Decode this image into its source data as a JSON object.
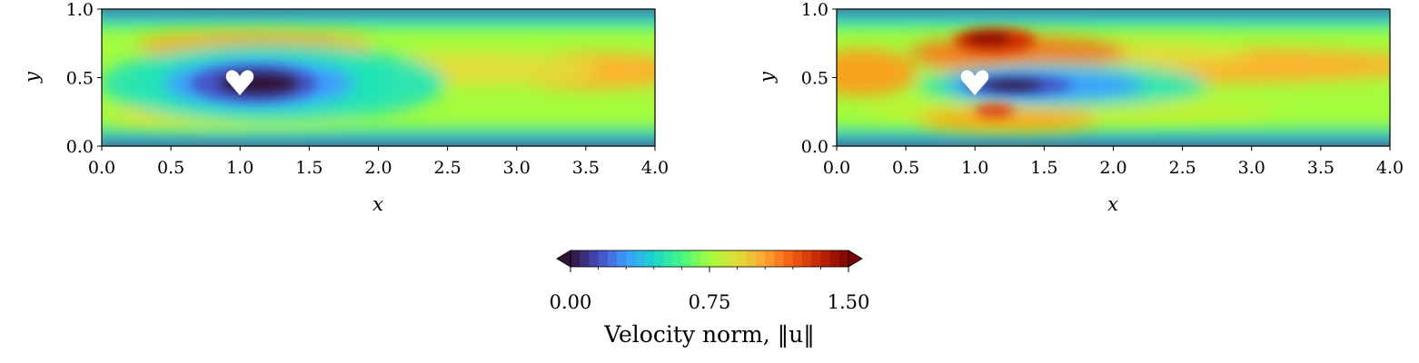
{
  "chart_data": [
    {
      "type": "heatmap",
      "title": "",
      "xlabel": "x",
      "ylabel": "y",
      "xlim": [
        0.0,
        4.0
      ],
      "ylim": [
        0.0,
        1.0
      ],
      "xticks": [
        "0.0",
        "0.5",
        "1.0",
        "1.5",
        "2.0",
        "2.5",
        "3.0",
        "3.5",
        "4.0"
      ],
      "yticks": [
        "0.0",
        "0.5",
        "1.0"
      ],
      "obstacle": {
        "shape": "heart",
        "center": [
          1.0,
          0.47
        ]
      },
      "field_features": [
        {
          "name": "wake",
          "x": 1.2,
          "y": 0.46,
          "value": 0.0
        },
        {
          "name": "upper-jet",
          "x": 1.2,
          "y": 0.76,
          "value": 1.0
        },
        {
          "name": "lower-jet",
          "x": 1.2,
          "y": 0.24,
          "value": 0.85
        },
        {
          "name": "outflow-core",
          "x": 3.6,
          "y": 0.55,
          "value": 1.0
        }
      ]
    },
    {
      "type": "heatmap",
      "title": "",
      "xlabel": "x",
      "ylabel": "y",
      "xlim": [
        0.0,
        4.0
      ],
      "ylim": [
        0.0,
        1.0
      ],
      "xticks": [
        "0.0",
        "0.5",
        "1.0",
        "1.5",
        "2.0",
        "2.5",
        "3.0",
        "3.5",
        "4.0"
      ],
      "yticks": [
        "0.0",
        "0.5",
        "1.0"
      ],
      "obstacle": {
        "shape": "heart",
        "center": [
          1.0,
          0.47
        ]
      },
      "field_features": [
        {
          "name": "wake",
          "x": 1.25,
          "y": 0.45,
          "value": 0.05
        },
        {
          "name": "upper-jet",
          "x": 1.05,
          "y": 0.78,
          "value": 1.45
        },
        {
          "name": "lower-jet",
          "x": 1.1,
          "y": 0.3,
          "value": 1.3
        },
        {
          "name": "inflow-core",
          "x": 0.1,
          "y": 0.5,
          "value": 1.0
        }
      ]
    }
  ],
  "colorbar": {
    "min": 0.0,
    "max": 1.5,
    "levels": 30,
    "extend": "both",
    "tick_labels": [
      "0.00",
      "0.75",
      "1.50"
    ],
    "label": "Velocity norm, ‖u‖",
    "colormap": "turbo"
  },
  "colors": {
    "low": "#30123b",
    "mid": "#a4fc3c",
    "high": "#7a0403"
  }
}
